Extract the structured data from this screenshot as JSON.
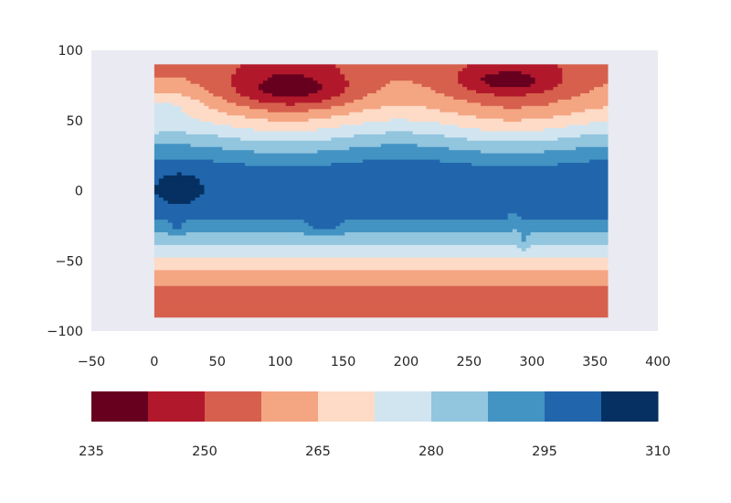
{
  "chart_data": [
    {
      "type": "heatmap",
      "description_of_data": "filled contour map of a gridded field over longitude 0-360 and latitude -90..90, banded into 10 levels",
      "xlim": [
        -50,
        400
      ],
      "ylim": [
        -100,
        100
      ],
      "x_ticks": [
        "−50",
        "0",
        "50",
        "100",
        "150",
        "200",
        "250",
        "300",
        "350",
        "400"
      ],
      "y_ticks": [
        "100",
        "50",
        "0",
        "−50",
        "−100"
      ],
      "x_tick_values": [
        -50,
        0,
        50,
        100,
        150,
        200,
        250,
        300,
        350,
        400
      ],
      "y_tick_values": [
        100,
        50,
        0,
        -50,
        -100
      ],
      "data_extent": {
        "lon": [
          0,
          360
        ],
        "lat": [
          -90,
          90
        ]
      },
      "levels": [
        235,
        242.5,
        250,
        257.5,
        265,
        272.5,
        280,
        287.5,
        295,
        302.5,
        310
      ],
      "background_color": "#eaeaf2",
      "grid": false
    },
    {
      "type": "colorbar",
      "orientation": "horizontal",
      "range": [
        235,
        310
      ],
      "tick_labels": [
        "235",
        "250",
        "265",
        "280",
        "295",
        "310"
      ],
      "tick_values": [
        235,
        250,
        265,
        280,
        295,
        310
      ],
      "colors": [
        "#67001f",
        "#b2182b",
        "#d6604d",
        "#f4a582",
        "#fddbc7",
        "#d1e5f0",
        "#92c5de",
        "#4393c3",
        "#2166ac",
        "#053061"
      ]
    }
  ]
}
